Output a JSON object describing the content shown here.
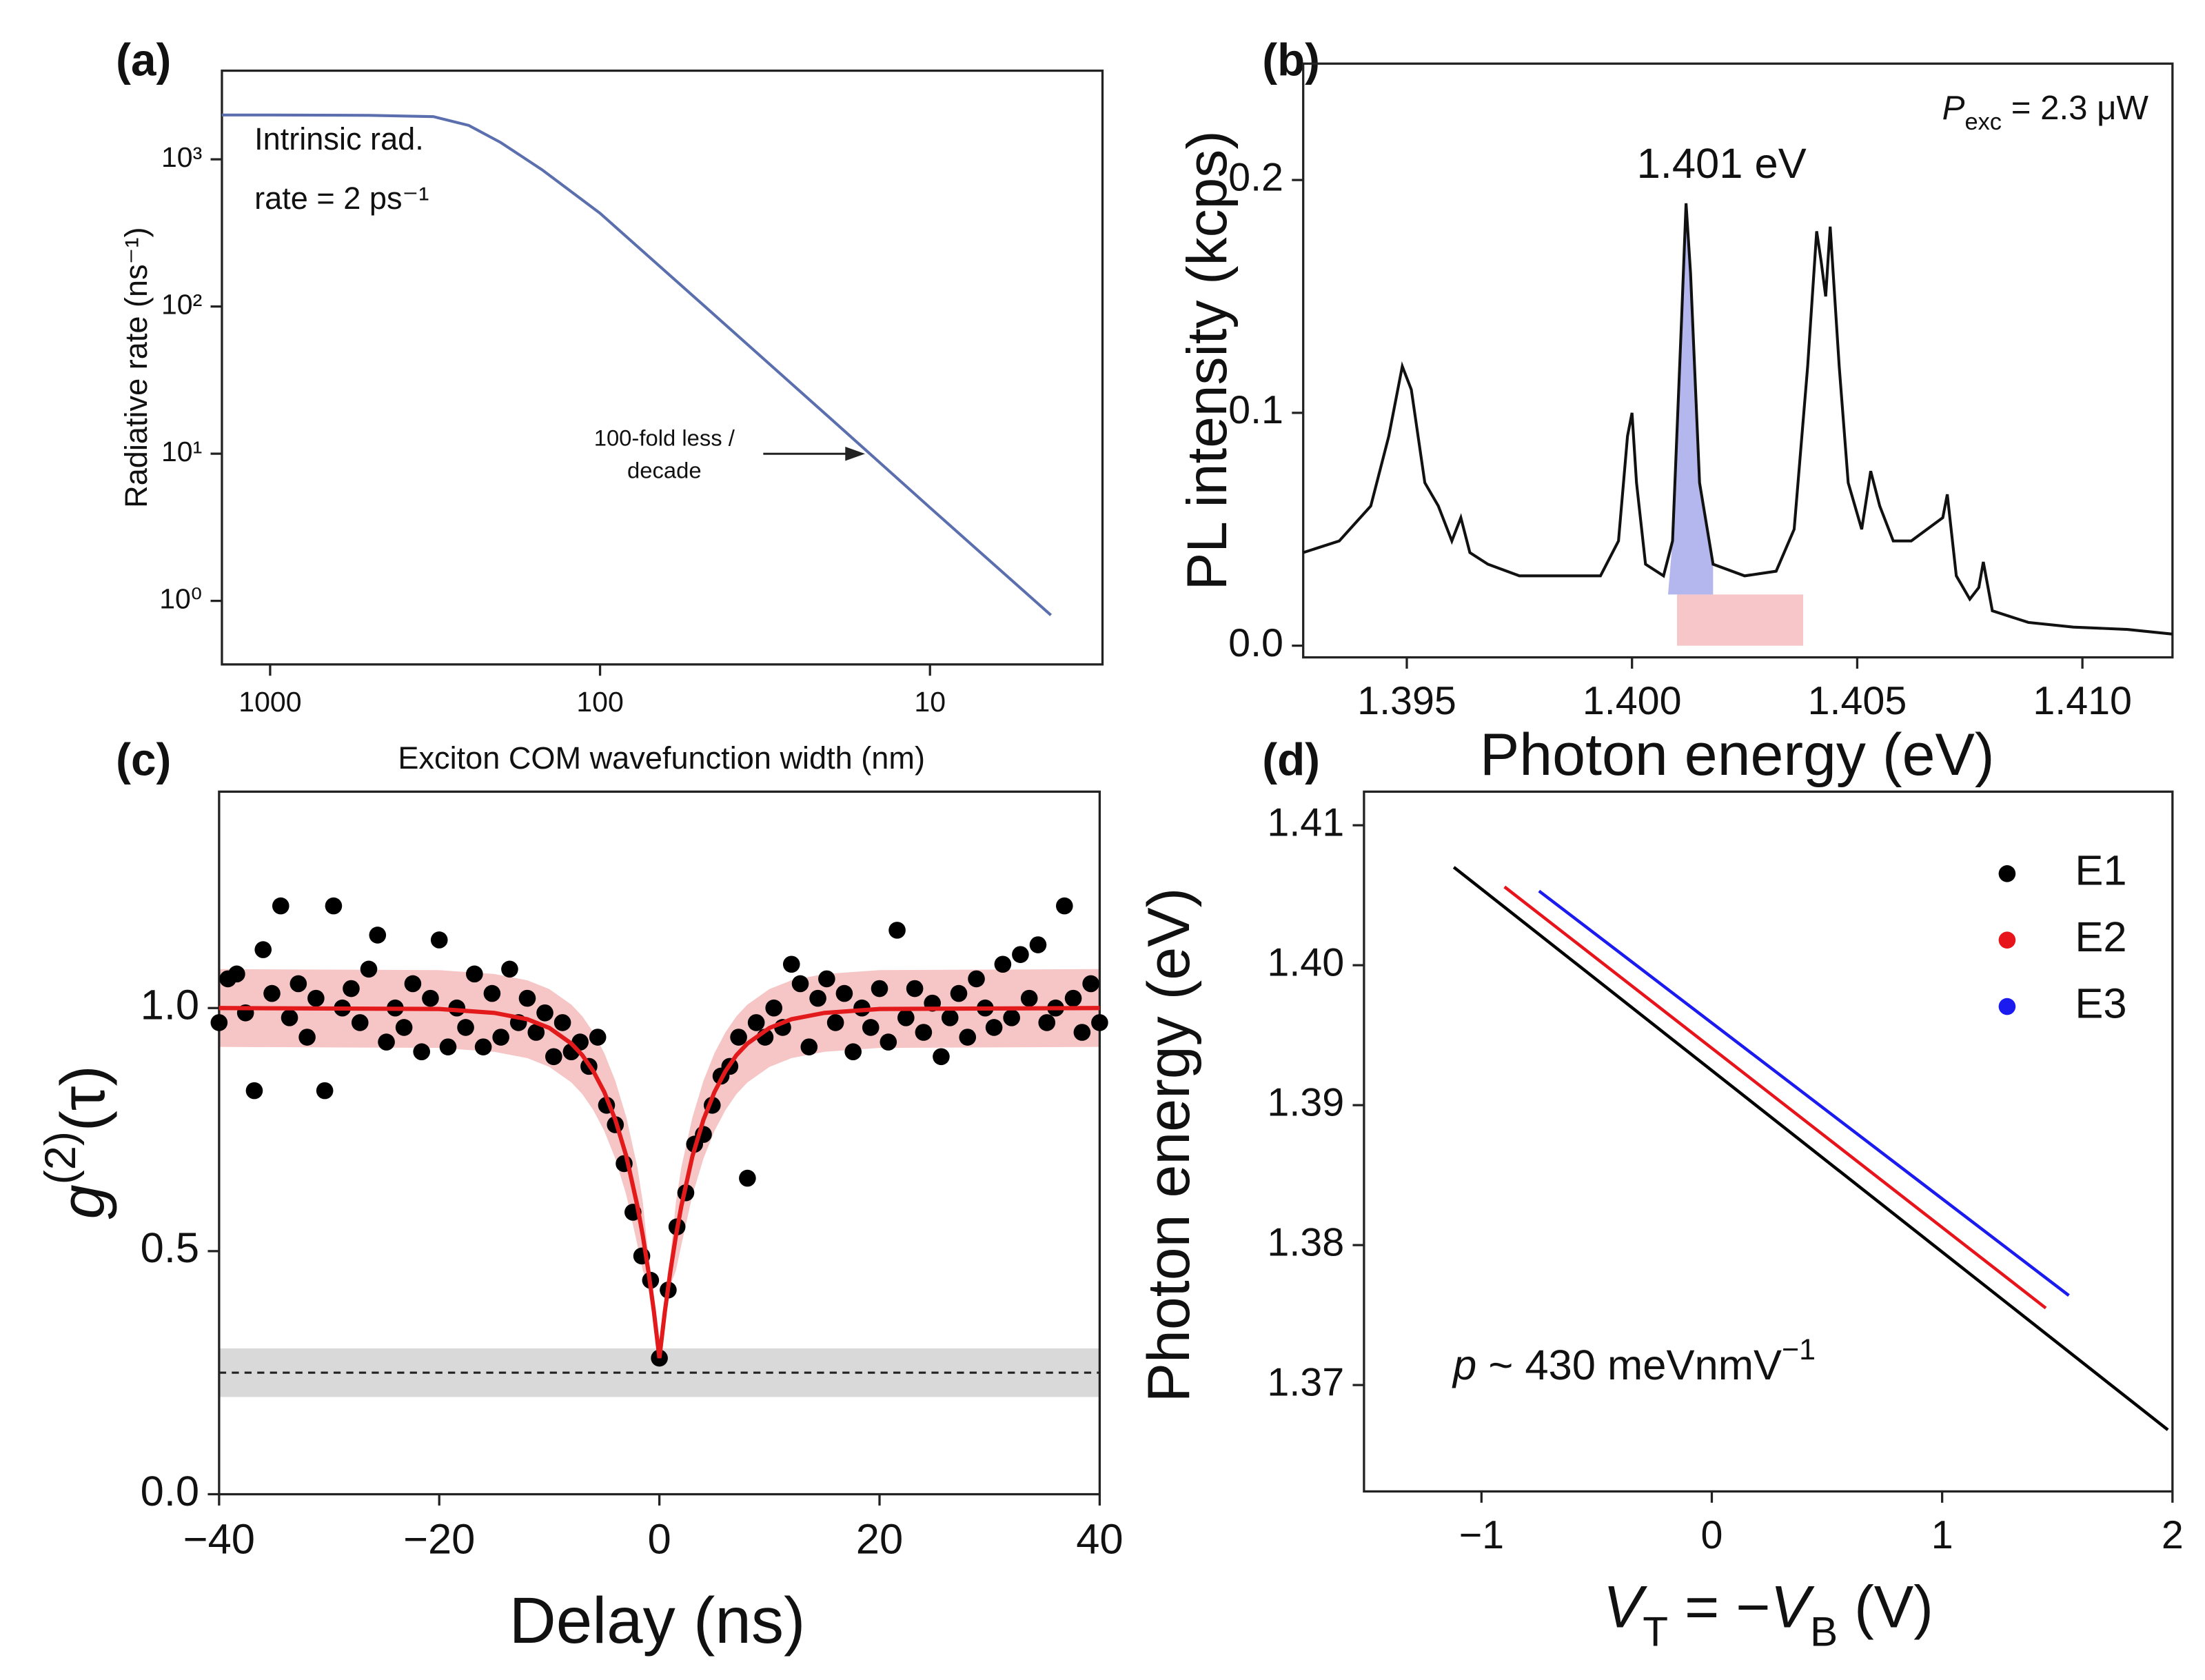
{
  "chart_data": [
    {
      "type": "line",
      "panel_label": "(a)",
      "xscale": "log",
      "yscale": "log",
      "xlabel": "Exciton COM wavefunction width (nm)",
      "ylabel": "Radiative rate (ns⁻¹)",
      "xlim": [
        1400,
        3
      ],
      "ylim": [
        0.37,
        4000
      ],
      "xticks": [
        1000,
        100,
        10
      ],
      "yticks": [
        {
          "value": 1,
          "label": "10⁰"
        },
        {
          "value": 10,
          "label": "10¹"
        },
        {
          "value": 100,
          "label": "10²"
        },
        {
          "value": 1000,
          "label": "10³"
        }
      ],
      "x": [
        1400,
        1000,
        500,
        320,
        250,
        200,
        150,
        100,
        50,
        20,
        10,
        4.3
      ],
      "values": [
        2000,
        2000,
        1990,
        1950,
        1700,
        1300,
        850,
        430,
        108,
        17.3,
        4.3,
        0.8
      ],
      "color": "#5b6fae",
      "annotations": [
        [
          "Intrinsic rad.",
          "rate = 2 ps⁻¹"
        ],
        [
          "100-fold less /",
          "decade"
        ]
      ]
    },
    {
      "type": "line",
      "panel_label": "(b)",
      "xlabel": "Photon energy (eV)",
      "ylabel": "PL intensity (kcps)",
      "xlim": [
        1.3927,
        1.412
      ],
      "ylim": [
        -0.005,
        0.25
      ],
      "xticks": [
        1.395,
        {
          "value": 1.4,
          "label": "1.400"
        },
        1.405,
        {
          "value": 1.41,
          "label": "1.410"
        }
      ],
      "yticks": [
        {
          "value": 0,
          "label": "0.0"
        },
        0.1,
        0.2
      ],
      "x": [
        1.3927,
        1.3935,
        1.3942,
        1.3946,
        1.3949,
        1.3951,
        1.3954,
        1.3957,
        1.396,
        1.3962,
        1.3964,
        1.3968,
        1.3975,
        1.3985,
        1.3993,
        1.3997,
        1.3999,
        1.4,
        1.4001,
        1.4003,
        1.4007,
        1.4009,
        1.4011,
        1.4012,
        1.4013,
        1.4015,
        1.4018,
        1.4025,
        1.4032,
        1.4036,
        1.4039,
        1.4041,
        1.4042,
        1.4043,
        1.4044,
        1.4046,
        1.4048,
        1.4051,
        1.4053,
        1.4055,
        1.4058,
        1.4062,
        1.4069,
        1.407,
        1.4072,
        1.4075,
        1.4077,
        1.4078,
        1.408,
        1.4088,
        1.4098,
        1.411,
        1.412
      ],
      "values": [
        0.04,
        0.045,
        0.06,
        0.09,
        0.12,
        0.11,
        0.07,
        0.06,
        0.045,
        0.055,
        0.04,
        0.035,
        0.03,
        0.03,
        0.03,
        0.045,
        0.09,
        0.1,
        0.07,
        0.035,
        0.03,
        0.045,
        0.14,
        0.19,
        0.16,
        0.07,
        0.035,
        0.03,
        0.032,
        0.05,
        0.12,
        0.178,
        0.165,
        0.15,
        0.18,
        0.12,
        0.07,
        0.05,
        0.075,
        0.06,
        0.045,
        0.045,
        0.055,
        0.065,
        0.03,
        0.02,
        0.025,
        0.036,
        0.015,
        0.01,
        0.008,
        0.007,
        0.005
      ],
      "color": "#111111",
      "peak_label": "1.401 eV",
      "excitation": [
        "P",
        "exc",
        " = 2.3 μW"
      ],
      "peak_fill": {
        "xrange": [
          1.4008,
          1.4018
        ],
        "color": "#b4b6ee"
      },
      "band": {
        "xrange": [
          1.401,
          1.4038
        ],
        "yrange": [
          0,
          0.022
        ],
        "color": "#f7c6c8"
      }
    },
    {
      "type": "scatter",
      "panel_label": "(c)",
      "xlabel": "Delay (ns)",
      "ylabel": [
        "g",
        "(2)",
        "(τ)"
      ],
      "xlim": [
        -40,
        40
      ],
      "ylim": [
        0,
        1.445
      ],
      "xticks": [
        {
          "value": -40,
          "label": "−40"
        },
        {
          "value": -20,
          "label": "−20"
        },
        0,
        20,
        40
      ],
      "yticks": [
        {
          "value": 0,
          "label": "0.0"
        },
        0.5,
        {
          "value": 1,
          "label": "1.0"
        }
      ],
      "x": [
        -40,
        -39.2,
        -38.4,
        -37.6,
        -36.8,
        -36,
        -35.2,
        -34.4,
        -33.6,
        -32.8,
        -32,
        -31.2,
        -30.4,
        -29.6,
        -28.8,
        -28,
        -27.2,
        -26.4,
        -25.6,
        -24.8,
        -24,
        -23.2,
        -22.4,
        -21.6,
        -20.8,
        -20,
        -19.2,
        -18.4,
        -17.6,
        -16.8,
        -16,
        -15.2,
        -14.4,
        -13.6,
        -12.8,
        -12,
        -11.2,
        -10.4,
        -9.6,
        -8.8,
        -8,
        -7.2,
        -6.4,
        -5.6,
        -4.8,
        -4,
        -3.2,
        -2.4,
        -1.6,
        -0.8,
        0,
        0.8,
        1.6,
        2.4,
        3.2,
        4,
        4.8,
        5.6,
        6.4,
        7.2,
        8,
        8.8,
        9.6,
        10.4,
        11.2,
        12,
        12.8,
        13.6,
        14.4,
        15.2,
        16,
        16.8,
        17.6,
        18.4,
        19.2,
        20,
        20.8,
        21.6,
        22.4,
        23.2,
        24,
        24.8,
        25.6,
        26.4,
        27.2,
        28,
        28.8,
        29.6,
        30.4,
        31.2,
        32,
        32.8,
        33.6,
        34.4,
        35.2,
        36,
        36.8,
        37.6,
        38.4,
        39.2,
        40
      ],
      "values": [
        0.97,
        1.06,
        1.07,
        0.99,
        0.83,
        1.12,
        1.03,
        1.21,
        0.98,
        1.05,
        0.94,
        1.02,
        0.83,
        1.21,
        1.0,
        1.04,
        0.97,
        1.08,
        1.15,
        0.93,
        1.0,
        0.96,
        1.05,
        0.91,
        1.02,
        1.14,
        0.92,
        1.0,
        0.96,
        1.07,
        0.92,
        1.03,
        0.94,
        1.08,
        0.97,
        1.02,
        0.95,
        0.99,
        0.9,
        0.97,
        0.91,
        0.93,
        0.88,
        0.94,
        0.8,
        0.76,
        0.68,
        0.58,
        0.49,
        0.44,
        0.28,
        0.42,
        0.55,
        0.62,
        0.72,
        0.74,
        0.8,
        0.86,
        0.88,
        0.94,
        0.65,
        0.97,
        0.94,
        1.0,
        0.96,
        1.09,
        1.05,
        0.92,
        1.02,
        1.06,
        0.97,
        1.03,
        0.91,
        1.0,
        0.96,
        1.04,
        0.93,
        1.16,
        0.98,
        1.04,
        0.95,
        1.01,
        0.9,
        0.98,
        1.03,
        0.94,
        1.06,
        1.0,
        0.96,
        1.09,
        0.98,
        1.11,
        1.02,
        1.13,
        0.97,
        1.0,
        1.21,
        1.02,
        0.95,
        1.05,
        0.97
      ],
      "color": "#000000",
      "fit": {
        "x": [
          -40,
          -20,
          -15,
          -12,
          -10,
          -8,
          -7,
          -6,
          -5,
          -4,
          -3,
          -2,
          -1.5,
          -1,
          -0.5,
          0,
          0.5,
          1,
          1.5,
          2,
          3,
          4,
          5,
          6,
          7,
          8,
          10,
          12,
          15,
          20,
          40
        ],
        "values": [
          1,
          0.998,
          0.99,
          0.977,
          0.959,
          0.927,
          0.903,
          0.87,
          0.827,
          0.77,
          0.695,
          0.593,
          0.531,
          0.459,
          0.376,
          0.28,
          0.376,
          0.459,
          0.531,
          0.593,
          0.695,
          0.77,
          0.827,
          0.87,
          0.903,
          0.927,
          0.959,
          0.977,
          0.99,
          0.998,
          1
        ],
        "lower": [
          0.92,
          0.918,
          0.91,
          0.897,
          0.879,
          0.847,
          0.823,
          0.79,
          0.747,
          0.69,
          0.615,
          0.513,
          0.46,
          0.43,
          0.35,
          0.27,
          0.35,
          0.43,
          0.46,
          0.513,
          0.615,
          0.69,
          0.747,
          0.79,
          0.823,
          0.847,
          0.879,
          0.897,
          0.91,
          0.918,
          0.92
        ],
        "upper": [
          1.08,
          1.078,
          1.07,
          1.057,
          1.039,
          1.007,
          0.983,
          0.95,
          0.907,
          0.85,
          0.775,
          0.673,
          0.6,
          0.49,
          0.4,
          0.29,
          0.4,
          0.49,
          0.6,
          0.673,
          0.775,
          0.85,
          0.907,
          0.95,
          0.983,
          1.007,
          1.039,
          1.057,
          1.07,
          1.078,
          1.08
        ],
        "color": "#e31a1c",
        "band_color": "#f6c5c5"
      },
      "reference": {
        "value": 0.25,
        "range": [
          0.2,
          0.3
        ],
        "color": "#d9d9d9"
      }
    },
    {
      "type": "line",
      "panel_label": "(d)",
      "xlabel": [
        "V",
        "T",
        " = −",
        "V",
        "B",
        " (V)"
      ],
      "ylabel": "Photon energy (eV)",
      "xlim": [
        -1.51,
        2.0
      ],
      "ylim": [
        1.3624,
        1.4124
      ],
      "xticks": [
        {
          "value": -1,
          "label": "−1"
        },
        0,
        1,
        2
      ],
      "yticks": [
        1.37,
        1.38,
        1.39,
        {
          "value": 1.4,
          "label": "1.40"
        },
        1.41
      ],
      "series": [
        {
          "name": "E1",
          "color": "#000000",
          "x": [
            -1.12,
            1.98
          ],
          "values": [
            1.407,
            1.3668
          ]
        },
        {
          "name": "E2",
          "color": "#e8141c",
          "x": [
            -0.9,
            1.45
          ],
          "values": [
            1.4056,
            1.3755
          ]
        },
        {
          "name": "E3",
          "color": "#1b1bf0",
          "x": [
            -0.75,
            1.55
          ],
          "values": [
            1.4053,
            1.3764
          ]
        }
      ],
      "annotation": [
        "p",
        " ~ 430 meVnmV",
        "−1"
      ]
    }
  ]
}
